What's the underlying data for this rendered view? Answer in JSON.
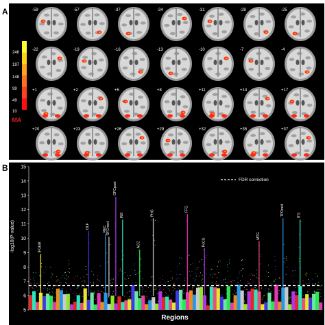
{
  "panel_a": {
    "label": "A",
    "slices": [
      "-59",
      "-57",
      "-37",
      "-34",
      "-31",
      "-28",
      "-25",
      "-22",
      "-19",
      "-16",
      "-13",
      "-10",
      "-7",
      "-4",
      "+1",
      "+2",
      "+5",
      "+8",
      "+11",
      "+14",
      "+17",
      "+20",
      "+23",
      "+26",
      "+29",
      "+32",
      "+35",
      "+37"
    ],
    "colorbar": {
      "ticks": [
        "246",
        "197",
        "148",
        "99",
        "49",
        "10"
      ],
      "title": "MA",
      "colors": [
        "#ffff33",
        "#ffd21a",
        "#ffa020",
        "#ff7020",
        "#ff4020",
        "#ff1010"
      ]
    }
  },
  "panel_b": {
    "label": "B",
    "xlabel": "Regions",
    "ylabel": "-log10(P-value)",
    "legend": "FDR correction",
    "region_labels": [
      "IFGtriR",
      "OLF",
      "REC",
      "OFCmed",
      "OFCpost",
      "INS",
      "ACC",
      "PHG",
      "FFG",
      "PoCG",
      "MTG",
      "TPOmid",
      "ITG"
    ],
    "chart_data": {
      "type": "scatter",
      "ylabel": "-log10(P-value)",
      "xlabel": "Regions",
      "ylim": [
        5,
        15
      ],
      "yticks": [
        5,
        6,
        7,
        8,
        9,
        10,
        11,
        12,
        13,
        14,
        15
      ],
      "threshold": 6.7,
      "peaks": [
        {
          "label": "IFGtriR",
          "value": 8.9
        },
        {
          "label": "OLF",
          "value": 10.5
        },
        {
          "label": "REC",
          "value": 10.3
        },
        {
          "label": "OFCmed",
          "value": 10.1
        },
        {
          "label": "OFCpost",
          "value": 12.9
        },
        {
          "label": "INS",
          "value": 11.3
        },
        {
          "label": "ACC",
          "value": 9.2
        },
        {
          "label": "PHG",
          "value": 11.4
        },
        {
          "label": "FFG",
          "value": 11.7
        },
        {
          "label": "PoCG",
          "value": 9.3
        },
        {
          "label": "MTG",
          "value": 9.8
        },
        {
          "label": "TPOmid",
          "value": 11.4
        },
        {
          "label": "ITG",
          "value": 11.3
        }
      ]
    }
  }
}
